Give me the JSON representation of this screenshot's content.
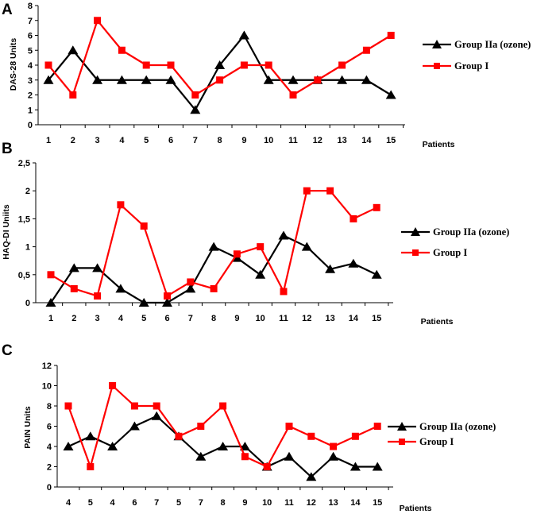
{
  "series_colors": {
    "Group IIa (ozone)": "#000000",
    "Group I": "#ff0000"
  },
  "chart_data": [
    {
      "panel": "A",
      "type": "line",
      "title": "",
      "xlabel": "Patients",
      "ylabel": "DAS-28 Units",
      "categories": [
        "1",
        "2",
        "3",
        "4",
        "5",
        "6",
        "7",
        "8",
        "9",
        "10",
        "11",
        "12",
        "13",
        "14",
        "15"
      ],
      "ylim": [
        0,
        8
      ],
      "yticks": [
        "0",
        "1",
        "2",
        "3",
        "4",
        "5",
        "6",
        "7",
        "8"
      ],
      "yticks_values": [
        0,
        1,
        2,
        3,
        4,
        5,
        6,
        7,
        8
      ],
      "grid": false,
      "legend": "right",
      "series": [
        {
          "name": "Group IIa (ozone)",
          "marker": "triangle",
          "values": [
            3,
            5,
            3,
            3,
            3,
            3,
            1,
            4,
            6,
            3,
            3,
            3,
            3,
            3,
            2
          ]
        },
        {
          "name": "Group I",
          "marker": "square",
          "values": [
            4,
            2,
            7,
            5,
            4,
            4,
            2,
            3,
            4,
            4,
            2,
            3,
            4,
            5,
            6
          ]
        }
      ]
    },
    {
      "panel": "B",
      "type": "line",
      "title": "",
      "xlabel": "Patients",
      "ylabel": "HAQ-DI Uniits",
      "categories": [
        "1",
        "2",
        "3",
        "4",
        "5",
        "6",
        "7",
        "8",
        "9",
        "10",
        "11",
        "12",
        "13",
        "14",
        "15"
      ],
      "ylim": [
        0,
        2.5
      ],
      "yticks": [
        "0",
        "0,5",
        "1",
        "1,5",
        "2",
        "2,5"
      ],
      "yticks_values": [
        0,
        0.5,
        1,
        1.5,
        2,
        2.5
      ],
      "grid": false,
      "legend": "right",
      "series": [
        {
          "name": "Group IIa (ozone)",
          "marker": "triangle",
          "values": [
            0,
            0.62,
            0.62,
            0.25,
            0,
            0,
            0.25,
            1,
            0.8,
            0.5,
            1.2,
            1,
            0.6,
            0.7,
            0.5
          ]
        },
        {
          "name": "Group I",
          "marker": "square",
          "values": [
            0.5,
            0.25,
            0.12,
            1.75,
            1.37,
            0.12,
            0.37,
            0.25,
            0.87,
            1,
            0.2,
            2,
            2,
            1.5,
            1.7
          ]
        }
      ]
    },
    {
      "panel": "C",
      "type": "line",
      "title": "",
      "xlabel": "Patients",
      "ylabel": "PAIN Units",
      "categories": [
        "4",
        "5",
        "4",
        "6",
        "7",
        "5",
        "7",
        "8",
        "9",
        "10",
        "11",
        "12",
        "13",
        "14",
        "15"
      ],
      "ylim": [
        0,
        12
      ],
      "yticks": [
        "0",
        "2",
        "4",
        "6",
        "8",
        "10",
        "12"
      ],
      "yticks_values": [
        0,
        2,
        4,
        6,
        8,
        10,
        12
      ],
      "grid": false,
      "legend": "right",
      "series": [
        {
          "name": "Group IIa (ozone)",
          "marker": "triangle",
          "values": [
            4,
            5,
            4,
            6,
            7,
            5,
            3,
            4,
            4,
            2,
            3,
            1,
            3,
            2,
            2
          ]
        },
        {
          "name": "Group I",
          "marker": "square",
          "values": [
            8,
            2,
            10,
            8,
            8,
            5,
            6,
            8,
            3,
            2,
            6,
            5,
            4,
            5,
            6
          ]
        }
      ]
    }
  ]
}
